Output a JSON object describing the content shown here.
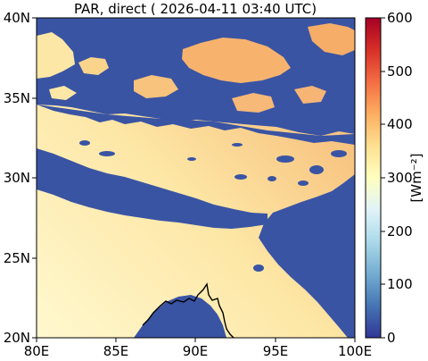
{
  "title": "PAR, direct ( 2026-04-11 03:40 UTC)",
  "map": {
    "lon_range": [
      80,
      100
    ],
    "lat_range": [
      20,
      40
    ],
    "x_ticks": [
      "80E",
      "85E",
      "90E",
      "95E",
      "100E"
    ],
    "y_ticks": [
      "20N",
      "25N",
      "30N",
      "35N",
      "40N"
    ]
  },
  "colorbar": {
    "label": "[Wm⁻²]",
    "range": [
      0,
      600
    ],
    "ticks": [
      "0",
      "100",
      "200",
      "300",
      "400",
      "500",
      "600"
    ],
    "colormap": "RdYlBu_r",
    "colors": [
      "#313695",
      "#4575b4",
      "#74add1",
      "#abd9e9",
      "#e0f3f8",
      "#ffffbf",
      "#fee090",
      "#fdae61",
      "#f46d43",
      "#d73027",
      "#a50026"
    ]
  },
  "field_colors": {
    "cloud": "#3a54a4",
    "clear_low": "#fff3c0",
    "clear_high": "#f7b36e"
  }
}
